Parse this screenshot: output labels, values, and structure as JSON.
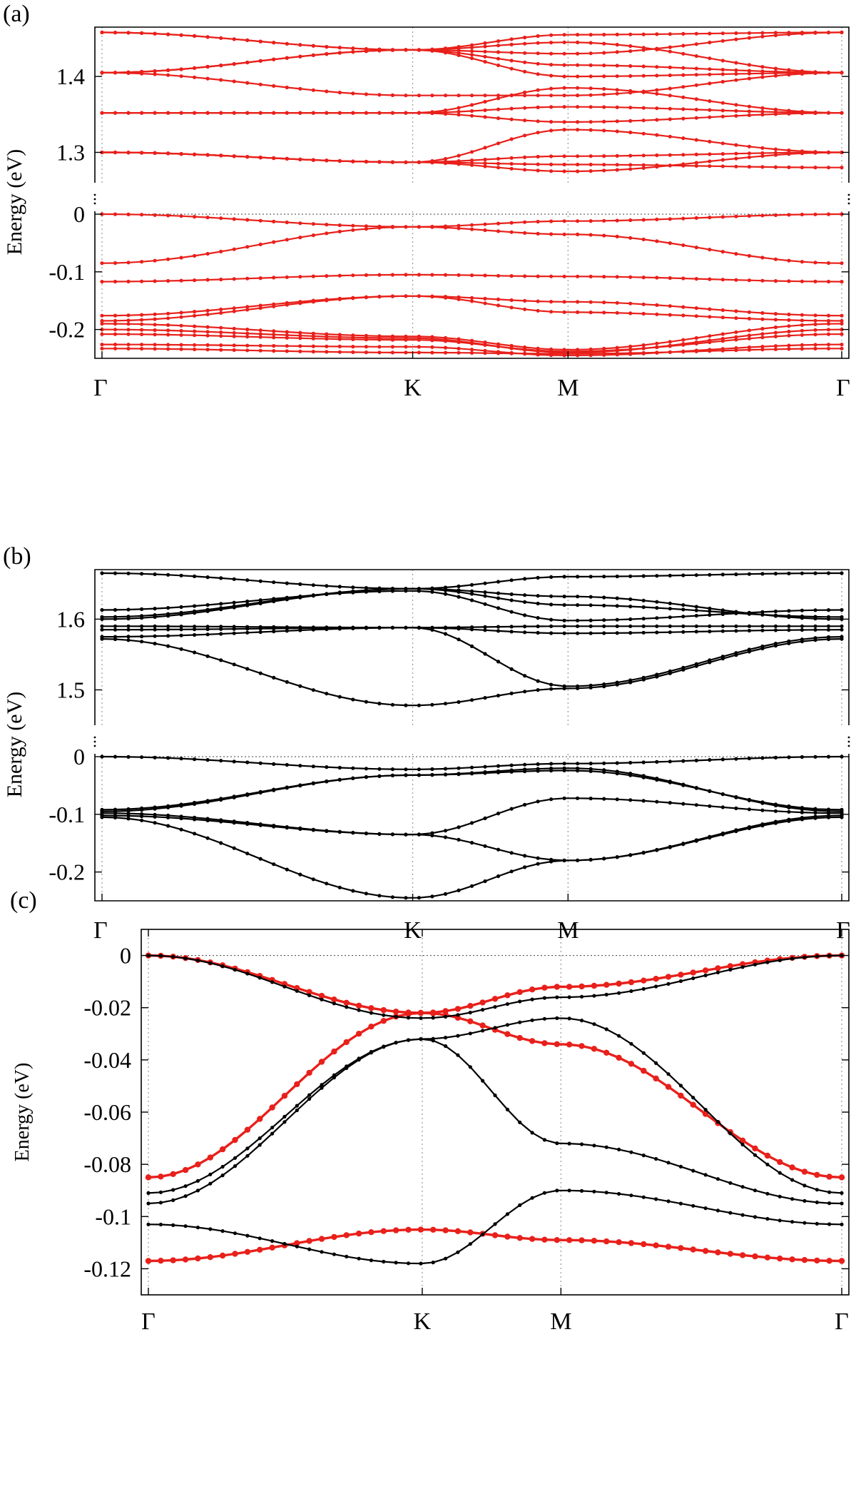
{
  "chart_data": [
    {
      "panel": "(a)",
      "type": "line",
      "ylabel": "Energy  (eV)",
      "broken_axis": true,
      "x_ticks": [
        "Γ",
        "K",
        "M",
        "Γ"
      ],
      "x": [
        0,
        0.42,
        0.63,
        1.0
      ],
      "upper": {
        "ylim": [
          1.26,
          1.465
        ],
        "yticks": [
          "1.3",
          "1.4"
        ],
        "series": [
          {
            "values": [
              1.3,
              1.287,
              1.284,
              1.28
            ]
          },
          {
            "values": [
              1.3,
              1.287,
              1.275,
              1.3
            ]
          },
          {
            "values": [
              1.3,
              1.287,
              1.295,
              1.3
            ]
          },
          {
            "values": [
              1.3,
              1.287,
              1.33,
              1.3
            ]
          },
          {
            "values": [
              1.352,
              1.352,
              1.34,
              1.352
            ]
          },
          {
            "values": [
              1.352,
              1.352,
              1.36,
              1.352
            ]
          },
          {
            "values": [
              1.352,
              1.352,
              1.385,
              1.352
            ]
          },
          {
            "values": [
              1.405,
              1.435,
              1.4,
              1.405
            ]
          },
          {
            "values": [
              1.405,
              1.435,
              1.415,
              1.405
            ]
          },
          {
            "values": [
              1.405,
              1.435,
              1.445,
              1.405
            ]
          },
          {
            "values": [
              1.405,
              1.375,
              1.375,
              1.405
            ]
          },
          {
            "values": [
              1.458,
              1.435,
              1.43,
              1.458
            ]
          },
          {
            "values": [
              1.458,
              1.435,
              1.455,
              1.458
            ]
          }
        ]
      },
      "lower": {
        "ylim": [
          -0.25,
          0.005
        ],
        "yticks": [
          "0",
          "-0.1",
          "-0.2"
        ],
        "series": [
          {
            "values": [
              0.0,
              -0.022,
              -0.012,
              0.0
            ]
          },
          {
            "values": [
              -0.085,
              -0.022,
              -0.035,
              -0.085
            ]
          },
          {
            "values": [
              -0.117,
              -0.105,
              -0.108,
              -0.117
            ]
          },
          {
            "values": [
              -0.176,
              -0.142,
              -0.152,
              -0.176
            ]
          },
          {
            "values": [
              -0.185,
              -0.142,
              -0.17,
              -0.185
            ]
          },
          {
            "values": [
              -0.19,
              -0.212,
              -0.235,
              -0.19
            ]
          },
          {
            "values": [
              -0.2,
              -0.215,
              -0.24,
              -0.2
            ]
          },
          {
            "values": [
              -0.208,
              -0.218,
              -0.238,
              -0.208
            ]
          },
          {
            "values": [
              -0.226,
              -0.23,
              -0.245,
              -0.226
            ]
          },
          {
            "values": [
              -0.233,
              -0.24,
              -0.242,
              -0.233
            ]
          }
        ]
      }
    },
    {
      "panel": "(b)",
      "type": "line",
      "ylabel": "Energy  (eV)",
      "broken_axis": true,
      "x_ticks": [
        "Γ",
        "K",
        "M",
        "Γ"
      ],
      "x": [
        0,
        0.42,
        0.63,
        1.0
      ],
      "upper": {
        "ylim": [
          1.45,
          1.67
        ],
        "yticks": [
          "1.5",
          "1.6"
        ],
        "series": [
          {
            "values": [
              1.572,
              1.478,
              1.502,
              1.572
            ]
          },
          {
            "values": [
              1.575,
              1.588,
              1.505,
              1.575
            ]
          },
          {
            "values": [
              1.585,
              1.588,
              1.58,
              1.585
            ]
          },
          {
            "values": [
              1.59,
              1.588,
              1.59,
              1.59
            ]
          },
          {
            "values": [
              1.6,
              1.643,
              1.632,
              1.6
            ]
          },
          {
            "values": [
              1.603,
              1.643,
              1.62,
              1.603
            ]
          },
          {
            "values": [
              1.613,
              1.64,
              1.598,
              1.613
            ]
          },
          {
            "values": [
              1.665,
              1.643,
              1.66,
              1.665
            ]
          }
        ]
      },
      "lower": {
        "ylim": [
          -0.25,
          0.005
        ],
        "yticks": [
          "0",
          "-0.1",
          "-0.2"
        ],
        "series": [
          {
            "values": [
              0.0,
              -0.022,
              -0.012,
              0.0
            ]
          },
          {
            "values": [
              -0.092,
              -0.032,
              -0.024,
              -0.092
            ]
          },
          {
            "values": [
              -0.095,
              -0.032,
              -0.02,
              -0.095
            ]
          },
          {
            "values": [
              -0.098,
              -0.135,
              -0.072,
              -0.098
            ]
          },
          {
            "values": [
              -0.102,
              -0.135,
              -0.18,
              -0.102
            ]
          },
          {
            "values": [
              -0.105,
              -0.245,
              -0.18,
              -0.105
            ]
          }
        ]
      }
    },
    {
      "panel": "(c)",
      "type": "line",
      "ylabel": "Energy (eV)",
      "x_ticks": [
        "Γ",
        "K",
        "M",
        "Γ"
      ],
      "x": [
        0,
        0.395,
        0.595,
        1.0
      ],
      "ylim": [
        -0.13,
        0.01
      ],
      "yticks": [
        "0",
        "-0.02",
        "-0.04",
        "-0.06",
        "-0.08",
        "-0.1",
        "-0.12"
      ],
      "series_colors": [
        "#e8201b",
        "#000000"
      ],
      "series": [
        {
          "color": "red",
          "values": [
            0.0,
            -0.022,
            -0.012,
            0.0
          ]
        },
        {
          "color": "red",
          "values": [
            -0.085,
            -0.022,
            -0.034,
            -0.085
          ]
        },
        {
          "color": "red",
          "values": [
            -0.117,
            -0.105,
            -0.109,
            -0.117
          ]
        },
        {
          "color": "black",
          "values": [
            0.0,
            -0.024,
            -0.016,
            0.0
          ]
        },
        {
          "color": "black",
          "values": [
            -0.091,
            -0.032,
            -0.024,
            -0.091
          ]
        },
        {
          "color": "black",
          "values": [
            -0.095,
            -0.032,
            -0.072,
            -0.095
          ]
        },
        {
          "color": "black",
          "values": [
            -0.103,
            -0.118,
            -0.09,
            -0.103
          ]
        }
      ]
    }
  ]
}
